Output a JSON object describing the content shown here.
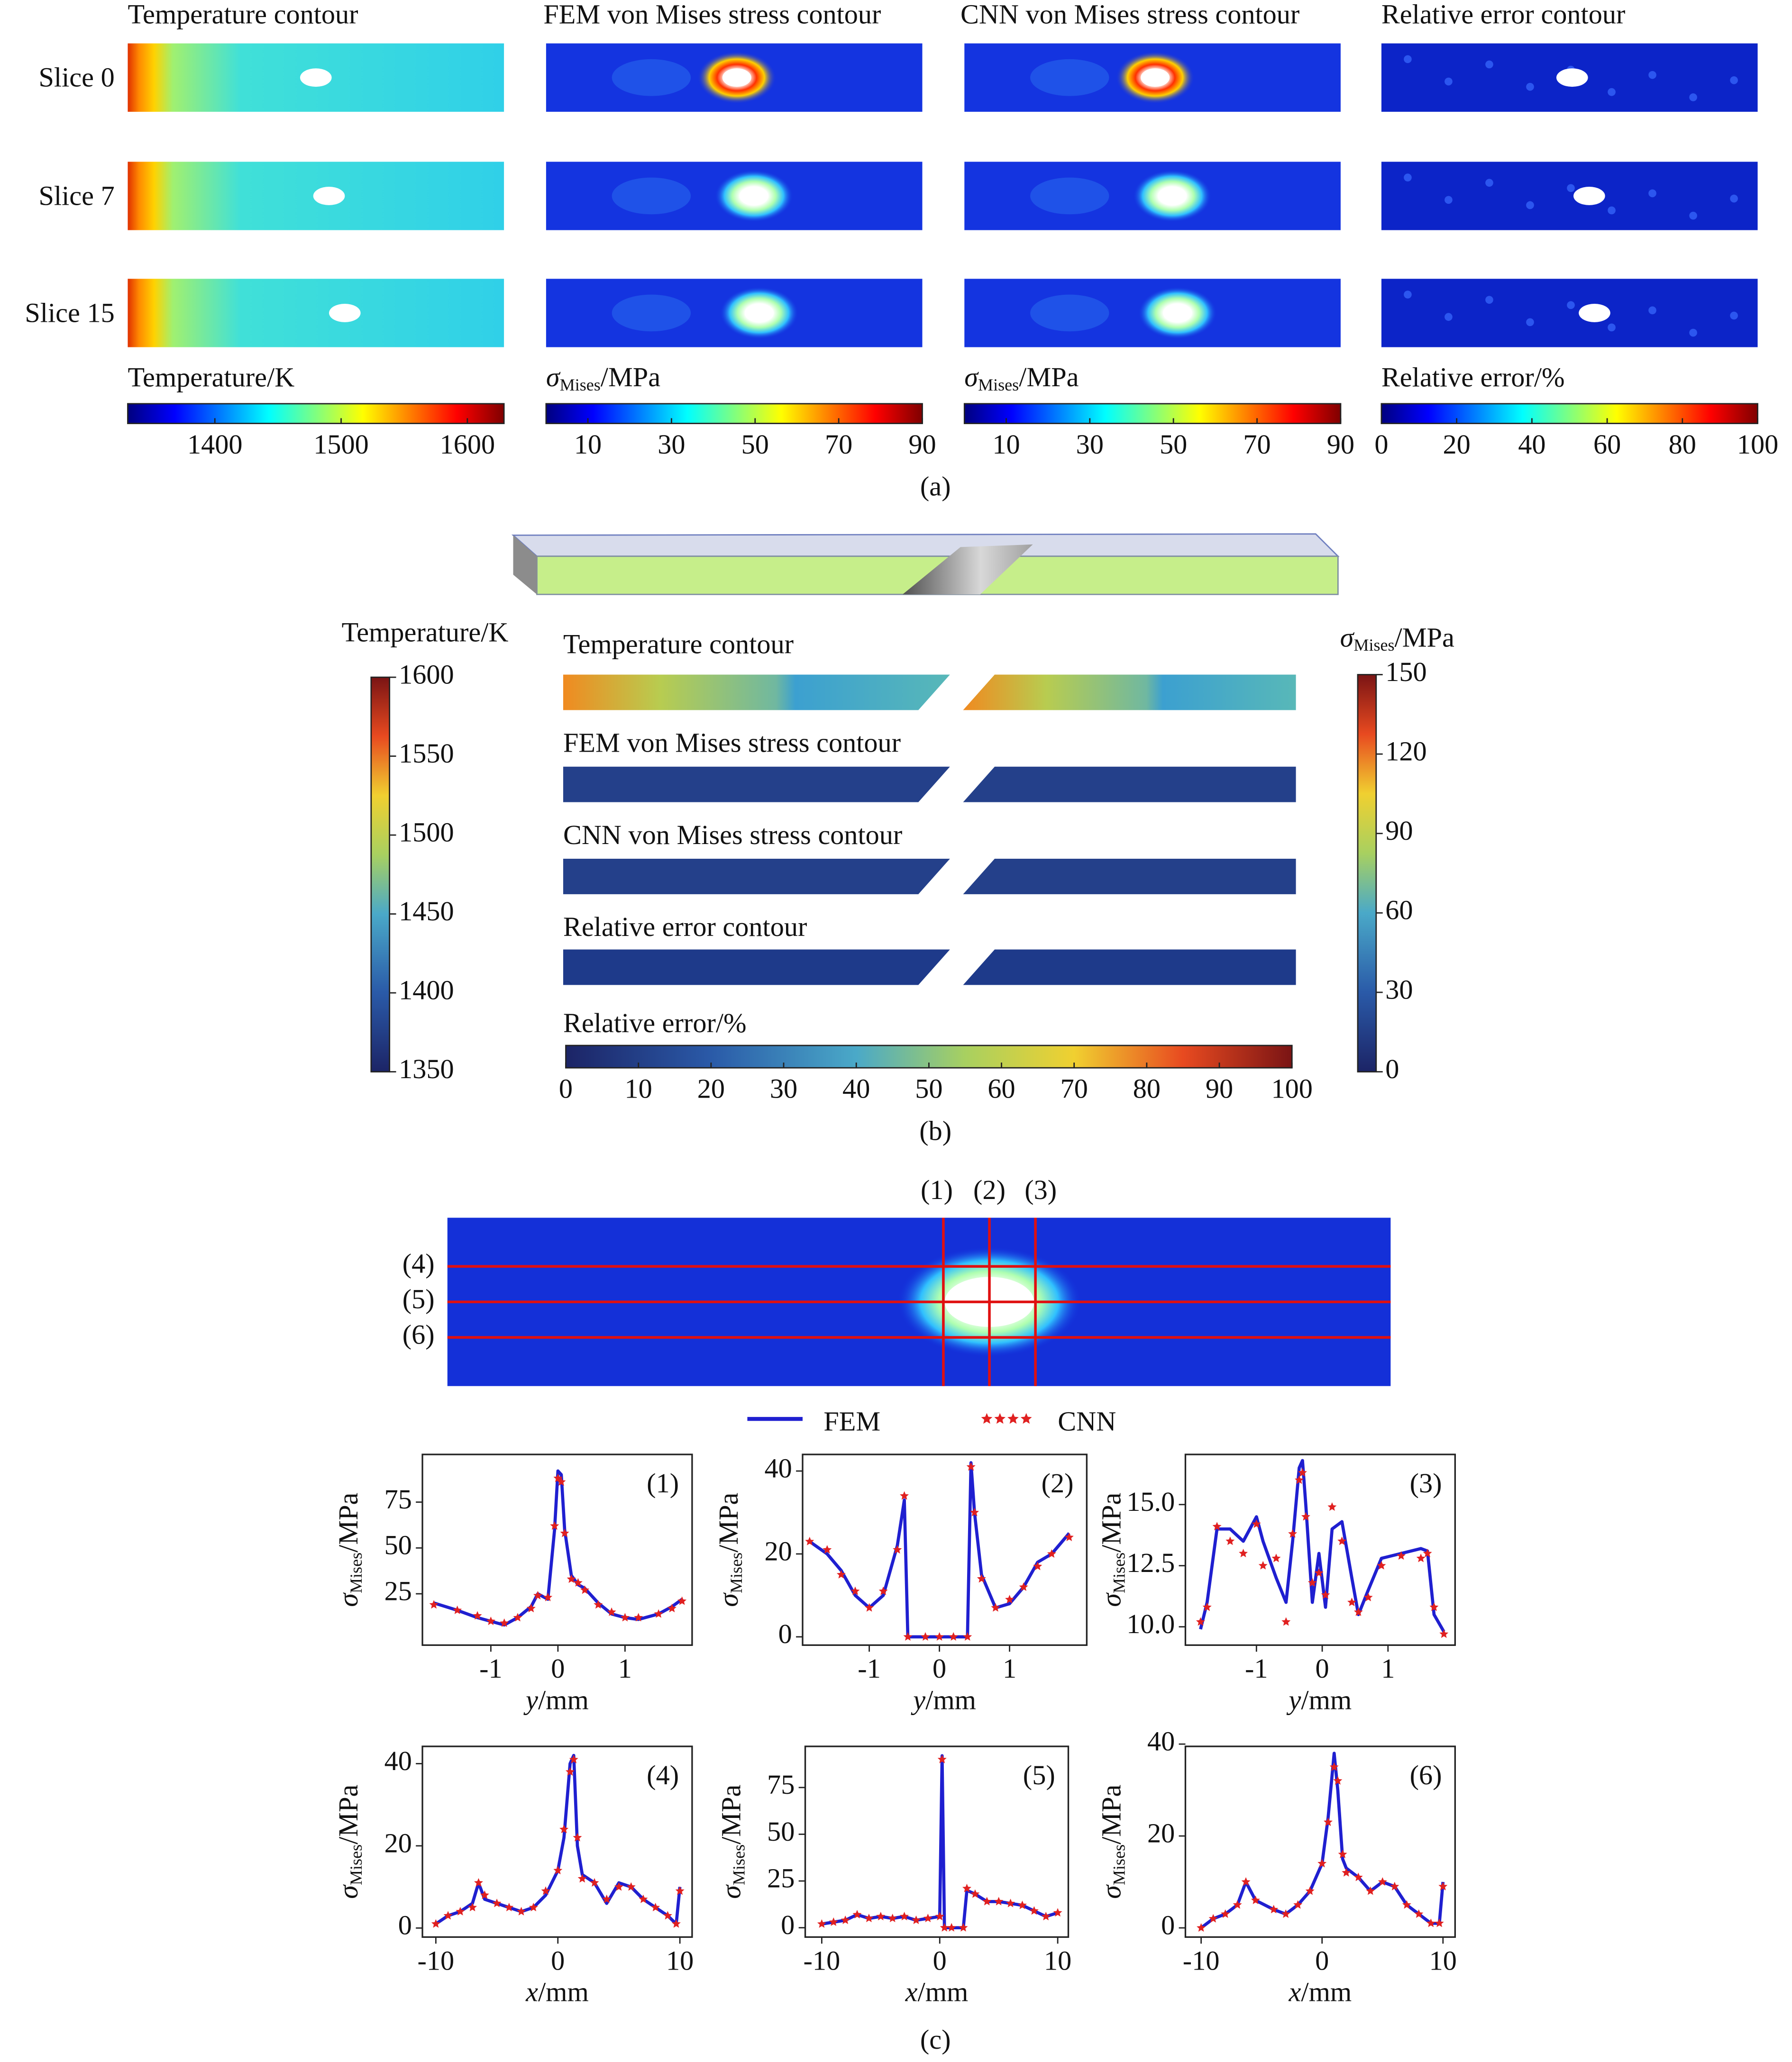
{
  "panel_a": {
    "column_titles": [
      "Temperature contour",
      "FEM von Mises stress contour",
      "CNN von Mises stress contour",
      "Relative error contour"
    ],
    "row_labels": [
      "Slice 0",
      "Slice 7",
      "Slice 15"
    ],
    "colorbars": [
      {
        "label": "Temperature/K",
        "lim": [
          1331,
          1629
        ],
        "ticks": [
          1400,
          1500,
          1600
        ]
      },
      {
        "label": {
          "symbol": "σ",
          "subscript": "Mises",
          "unit": "/MPa"
        },
        "lim": [
          0,
          90
        ],
        "ticks": [
          10,
          30,
          50,
          70,
          90
        ]
      },
      {
        "label": {
          "symbol": "σ",
          "subscript": "Mises",
          "unit": "/MPa"
        },
        "lim": [
          0,
          90
        ],
        "ticks": [
          10,
          30,
          50,
          70,
          90
        ]
      },
      {
        "label": "Relative error/%",
        "lim": [
          0,
          100
        ],
        "ticks": [
          0,
          20,
          40,
          60,
          80,
          100
        ]
      }
    ],
    "caption": "(a)"
  },
  "panel_b": {
    "strip_titles": [
      "Temperature contour",
      "FEM von Mises stress contour",
      "CNN von Mises stress contour",
      "Relative error contour"
    ],
    "colorbars": {
      "temperature": {
        "label": "Temperature/K",
        "lim": [
          1350,
          1600
        ],
        "ticks": [
          1350,
          1400,
          1450,
          1500,
          1550,
          1600
        ]
      },
      "stress": {
        "label": {
          "symbol": "σ",
          "subscript": "Mises",
          "unit": "/MPa"
        },
        "lim": [
          0,
          150
        ],
        "ticks": [
          0,
          30,
          60,
          90,
          120,
          150
        ]
      },
      "error": {
        "label": "Relative error/%",
        "lim": [
          0,
          100
        ],
        "ticks": [
          0,
          10,
          20,
          30,
          40,
          50,
          60,
          70,
          80,
          90,
          100
        ]
      }
    },
    "caption": "(b)"
  },
  "panel_c": {
    "line_labels": [
      "(1)",
      "(2)",
      "(3)",
      "(4)",
      "(5)",
      "(6)"
    ],
    "caption": "(c)"
  },
  "chart_data": [
    {
      "type": "line",
      "title": "(1)",
      "x_label": {
        "symbol": "y",
        "unit": "/mm"
      },
      "y_label": {
        "symbol": "σ",
        "subscript": "Mises",
        "unit": "/MPa"
      },
      "xlim": [
        -2.02,
        2.0
      ],
      "ylim": [
        -3,
        101
      ],
      "xticks": [
        -1,
        0,
        1
      ],
      "yticks": [
        25,
        50,
        75
      ],
      "x": [
        -1.85,
        -1.5,
        -1.2,
        -1.0,
        -0.8,
        -0.6,
        -0.4,
        -0.3,
        -0.15,
        -0.05,
        0,
        0.05,
        0.1,
        0.2,
        0.3,
        0.4,
        0.6,
        0.8,
        1.0,
        1.2,
        1.5,
        1.7,
        1.85
      ],
      "series": [
        {
          "name": "FEM",
          "color": "#1f1fd0",
          "values": [
            20,
            16,
            12,
            10,
            8,
            12,
            18,
            25,
            22,
            60,
            92,
            90,
            60,
            35,
            30,
            28,
            20,
            14,
            12,
            11,
            14,
            18,
            22
          ]
        },
        {
          "name": "CNN",
          "color": "#e02020",
          "values": [
            19,
            16,
            13,
            10,
            9,
            12,
            17,
            24,
            23,
            62,
            88,
            86,
            58,
            33,
            31,
            27,
            19,
            15,
            12,
            12,
            14,
            17,
            21
          ]
        }
      ]
    },
    {
      "type": "line",
      "title": "(2)",
      "x_label": {
        "symbol": "y",
        "unit": "/mm"
      },
      "y_label": {
        "symbol": "σ",
        "subscript": "Mises",
        "unit": "/MPa"
      },
      "xlim": [
        -1.95,
        2.1
      ],
      "ylim": [
        -2,
        44
      ],
      "xticks": [
        -1,
        0,
        1
      ],
      "yticks": [
        0,
        20,
        40
      ],
      "x": [
        -1.85,
        -1.6,
        -1.4,
        -1.2,
        -1.0,
        -0.8,
        -0.6,
        -0.5,
        -0.45,
        -0.2,
        0,
        0.2,
        0.4,
        0.45,
        0.5,
        0.6,
        0.8,
        1.0,
        1.2,
        1.4,
        1.6,
        1.85
      ],
      "series": [
        {
          "name": "FEM",
          "color": "#1f1fd0",
          "values": [
            23,
            20,
            16,
            10,
            7,
            10,
            22,
            33,
            0,
            0,
            0,
            0,
            0,
            42,
            30,
            15,
            7,
            8,
            12,
            18,
            20,
            25
          ]
        },
        {
          "name": "CNN",
          "color": "#e02020",
          "values": [
            23,
            21,
            15,
            11,
            7,
            11,
            21,
            34,
            0,
            0,
            0,
            0,
            0,
            41,
            30,
            14,
            7,
            9,
            12,
            17,
            20,
            24
          ]
        }
      ]
    },
    {
      "type": "line",
      "title": "(3)",
      "x_label": {
        "symbol": "y",
        "unit": "/mm"
      },
      "y_label": {
        "symbol": "σ",
        "subscript": "Mises",
        "unit": "/MPa"
      },
      "xlim": [
        -2.08,
        2.02
      ],
      "ylim": [
        9.25,
        17.05
      ],
      "xticks": [
        -1,
        0,
        1
      ],
      "yticks": [
        {
          "value": 10,
          "label": "10.0"
        },
        12.5,
        {
          "value": 15,
          "label": "15.0"
        }
      ],
      "x": [
        -1.85,
        -1.75,
        -1.6,
        -1.4,
        -1.2,
        -1.0,
        -0.9,
        -0.7,
        -0.55,
        -0.45,
        -0.35,
        -0.3,
        -0.25,
        -0.15,
        -0.05,
        0.05,
        0.15,
        0.3,
        0.45,
        0.55,
        0.7,
        0.9,
        1.2,
        1.5,
        1.6,
        1.7,
        1.85
      ],
      "series": [
        {
          "name": "FEM",
          "color": "#1f1fd0",
          "values": [
            9.9,
            11,
            14,
            14,
            13.5,
            14.5,
            13.5,
            12,
            11,
            13.5,
            16.5,
            16.8,
            15,
            11,
            13,
            10.8,
            14,
            14.3,
            12,
            10.5,
            11.5,
            12.8,
            13,
            13.2,
            13.1,
            10.5,
            9.8
          ]
        },
        {
          "name": "CNN",
          "color": "#e02020",
          "values": [
            10.2,
            10.8,
            14.1,
            13.5,
            13,
            14.2,
            12.5,
            12.8,
            10.2,
            13.8,
            16,
            16.3,
            14.5,
            11.8,
            12.2,
            11.3,
            14.9,
            13.5,
            11,
            10.6,
            11.2,
            12.5,
            12.9,
            12.8,
            13,
            10.8,
            9.7
          ]
        }
      ]
    },
    {
      "type": "line",
      "title": "(4)",
      "x_label": {
        "symbol": "x",
        "unit": "/mm"
      },
      "y_label": {
        "symbol": "σ",
        "subscript": "Mises",
        "unit": "/MPa"
      },
      "xlim": [
        -11.1,
        11
      ],
      "ylim": [
        -2.2,
        44.2
      ],
      "xticks": [
        -10,
        0,
        10
      ],
      "yticks": [
        0,
        20,
        40
      ],
      "x": [
        -10,
        -9,
        -8,
        -7,
        -6.5,
        -6,
        -5,
        -4,
        -3,
        -2,
        -1,
        0,
        0.5,
        1,
        1.3,
        1.6,
        2,
        3,
        4,
        5,
        6,
        7,
        8,
        9,
        9.7,
        10
      ],
      "series": [
        {
          "name": "FEM",
          "color": "#1f1fd0",
          "values": [
            1,
            3,
            4,
            6,
            11,
            7,
            6,
            5,
            4,
            5,
            8,
            14,
            22,
            40,
            42,
            20,
            13,
            11,
            6,
            11,
            10,
            7,
            5,
            3,
            1,
            10
          ]
        },
        {
          "name": "CNN",
          "color": "#e02020",
          "values": [
            1,
            3,
            4,
            5,
            11,
            8,
            6,
            5,
            4,
            5,
            9,
            14,
            24,
            38,
            41,
            22,
            12,
            11,
            7,
            10,
            10,
            7,
            5,
            3,
            1,
            9
          ]
        }
      ]
    },
    {
      "type": "line",
      "title": "(5)",
      "x_label": {
        "symbol": "x",
        "unit": "/mm"
      },
      "y_label": {
        "symbol": "σ",
        "subscript": "Mises",
        "unit": "/MPa"
      },
      "xlim": [
        -11.4,
        10.9
      ],
      "ylim": [
        -5,
        97
      ],
      "xticks": [
        -10,
        0,
        10
      ],
      "yticks": [
        0,
        25,
        50,
        75
      ],
      "x": [
        -10,
        -9,
        -8,
        -7,
        -6,
        -5,
        -4,
        -3,
        -2,
        -1,
        0,
        0.2,
        0.4,
        1,
        2,
        2.3,
        3,
        4,
        5,
        6,
        7,
        8,
        9,
        10
      ],
      "series": [
        {
          "name": "FEM",
          "color": "#1f1fd0",
          "values": [
            2,
            3,
            4,
            7,
            5,
            6,
            5,
            6,
            4,
            5,
            6,
            92,
            0,
            0,
            0,
            20,
            18,
            14,
            14,
            13,
            12,
            9,
            6,
            8
          ]
        },
        {
          "name": "CNN",
          "color": "#e02020",
          "values": [
            2,
            3,
            4,
            7,
            5,
            6,
            5,
            6,
            4,
            5,
            6,
            90,
            0,
            0,
            0,
            21,
            18,
            14,
            14,
            13,
            12,
            9,
            6,
            8
          ]
        }
      ]
    },
    {
      "type": "line",
      "title": "(6)",
      "x_label": {
        "symbol": "x",
        "unit": "/mm"
      },
      "y_label": {
        "symbol": "σ",
        "subscript": "Mises",
        "unit": "/MPa"
      },
      "xlim": [
        -11.3,
        11
      ],
      "ylim": [
        -2,
        39.5
      ],
      "xticks": [
        -10,
        0,
        10
      ],
      "yticks": [
        0,
        20,
        40
      ],
      "x": [
        -10,
        -9,
        -8,
        -7,
        -6.3,
        -5.5,
        -4,
        -3,
        -2,
        -1,
        0,
        0.5,
        1,
        1.3,
        1.7,
        2,
        3,
        4,
        5,
        6,
        7,
        8,
        9,
        9.7,
        10
      ],
      "series": [
        {
          "name": "FEM",
          "color": "#1f1fd0",
          "values": [
            0,
            2,
            3,
            5,
            10,
            6,
            4,
            3,
            5,
            8,
            14,
            24,
            38,
            30,
            15,
            13,
            11,
            8,
            10,
            9,
            5,
            3,
            1,
            1,
            10
          ]
        },
        {
          "name": "CNN",
          "color": "#e02020",
          "values": [
            0,
            2,
            3,
            5,
            10,
            6,
            4,
            3,
            5,
            8,
            14,
            23,
            35,
            32,
            16,
            12,
            11,
            8,
            10,
            9,
            5,
            3,
            1,
            1,
            9
          ]
        }
      ]
    }
  ]
}
